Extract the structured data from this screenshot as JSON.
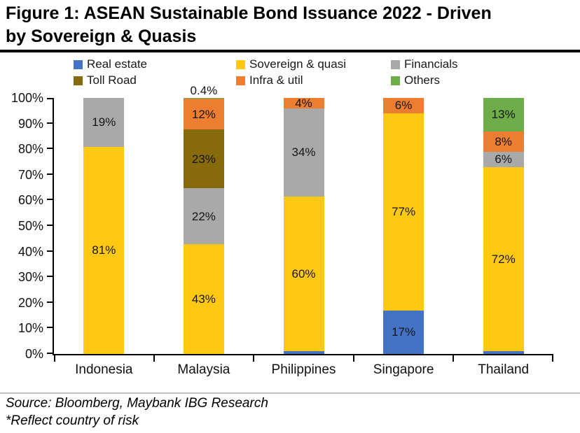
{
  "title": {
    "line1": "Figure 1: ASEAN Sustainable Bond Issuance 2022 - Driven",
    "line2": "by Sovereign & Quasis",
    "full": "Figure 1: ASEAN Sustainable Bond Issuance 2022 - Driven by Sovereign & Quasis"
  },
  "source_line": "Source: Bloomberg, Maybank IBG Research",
  "note_line": "*Reflect country of risk",
  "colors": {
    "real_estate": "#4472C4",
    "sovereign_quasi": "#FFC913",
    "financials": "#A9A9A9",
    "toll_road": "#866A0C",
    "infra_util": "#ED7D31",
    "others": "#6EAD49",
    "axis": "#000000",
    "divider": "#BFBFBF"
  },
  "chart_data": {
    "type": "bar",
    "stacked": true,
    "title": "ASEAN Sustainable Bond Issuance 2022 - Driven by Sovereign & Quasis",
    "categories": [
      "Indonesia",
      "Malaysia",
      "Philippines",
      "Singapore",
      "Thailand"
    ],
    "series": [
      {
        "name": "Real estate",
        "color": "#4472C4",
        "values": [
          0,
          0,
          1,
          17,
          1
        ]
      },
      {
        "name": "Sovereign & quasi",
        "color": "#FFC913",
        "values": [
          81,
          43,
          60,
          77,
          72
        ]
      },
      {
        "name": "Financials",
        "color": "#A9A9A9",
        "values": [
          19,
          22,
          34,
          0,
          6
        ]
      },
      {
        "name": "Toll Road",
        "color": "#866A0C",
        "values": [
          0,
          23,
          0,
          0,
          0
        ]
      },
      {
        "name": "Infra & util",
        "color": "#ED7D31",
        "values": [
          0,
          12,
          4,
          6,
          8
        ]
      },
      {
        "name": "Others",
        "color": "#6EAD49",
        "values": [
          0,
          0.4,
          0,
          0,
          13
        ]
      }
    ],
    "xlabel": "",
    "ylabel": "",
    "ylim": [
      0,
      100
    ],
    "y_tick_step": 10,
    "y_tick_suffix": "%",
    "value_label_suffix": "%",
    "grid": false,
    "legend_position": "top"
  }
}
